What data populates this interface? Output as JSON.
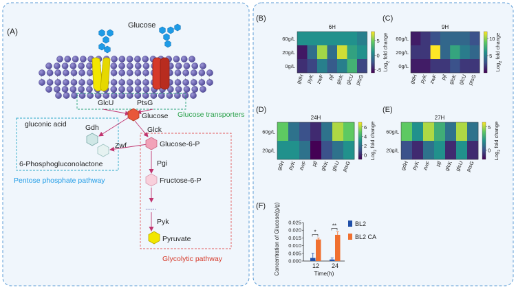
{
  "panel_a": {
    "label": "(A)",
    "glucose_title": "Glucose",
    "transporter_glcu": "GlcU",
    "transporter_ptsg": "PtsG",
    "transporters_caption": "Glucose transporters",
    "glucose_node": "Glucose",
    "gluconic_acid": "gluconic acid",
    "gdh": "Gdh",
    "zwf": "Zwf",
    "phosphogluconolactone": "6-Phosphogluconolactone",
    "pentose_caption": "Pentose phosphate pathway",
    "glck": "Glck",
    "glucose6p": "Glucose-6-P",
    "pgi": "Pgi",
    "fructose6p": "Fructose-6-P",
    "dots": "......",
    "pyk": "Pyk",
    "pyruvate": "Pyruvate",
    "glycolytic_caption": "Glycolytic pathway",
    "colors": {
      "lipid_head": "#6b63b5",
      "glcu_channel": "#f2e600",
      "ptsg_channel": "#d63a2a",
      "hexagon": "#1e9be6",
      "transporter_box": "#2aa17a",
      "pentose_box": "#2aa8c8",
      "glycolytic_box": "#e25b5b",
      "arrow": "#c0336e"
    }
  },
  "chart_data": [
    {
      "type": "heatmap",
      "panel": "(B)",
      "title": "6H",
      "x": [
        "gdH",
        "pyK",
        "zwF",
        "pjl",
        "glcK",
        "glcU",
        "ptsG"
      ],
      "y": [
        "60g/L",
        "20g/L",
        "0g/L"
      ],
      "values": [
        [
          1,
          1,
          1,
          1,
          1,
          1,
          0
        ],
        [
          -5,
          -1,
          6,
          -1,
          7,
          2,
          1
        ],
        [
          -4,
          -3,
          0,
          -2,
          0,
          3,
          -3
        ]
      ],
      "colorbar": {
        "min": -6,
        "max": 8,
        "ticks": [
          "5",
          "0",
          "-5"
        ],
        "label": "Log2 fold change"
      }
    },
    {
      "type": "heatmap",
      "panel": "(C)",
      "title": "9H",
      "x": [
        "gdH",
        "pyK",
        "zwF",
        "pjl",
        "glcK",
        "glcU",
        "ptsG"
      ],
      "y": [
        "60g/L",
        "20g/L",
        "0g/L"
      ],
      "values": [
        [
          1,
          2,
          3,
          4,
          4,
          4,
          3
        ],
        [
          2,
          2,
          12,
          4,
          7,
          5,
          4
        ],
        [
          1,
          1,
          2,
          2,
          3,
          2,
          2
        ]
      ],
      "colorbar": {
        "min": 0,
        "max": 12,
        "ticks": [
          "10",
          "5"
        ],
        "label": "Log2 fold change"
      }
    },
    {
      "type": "heatmap",
      "panel": "(D)",
      "title": "24H",
      "x": [
        "gdH",
        "pyK",
        "zwF",
        "pjl",
        "glcK",
        "glcU",
        "ptsG"
      ],
      "y": [
        "60g/L",
        "20g/L"
      ],
      "values": [
        [
          5,
          2,
          1,
          0,
          2,
          6,
          5
        ],
        [
          3,
          3,
          2,
          -1,
          1,
          2,
          3
        ]
      ],
      "colorbar": {
        "min": -1,
        "max": 7,
        "ticks": [
          "6",
          "4",
          "2",
          "0"
        ],
        "label": "Log2 fold change"
      }
    },
    {
      "type": "heatmap",
      "panel": "(E)",
      "title": "27H",
      "x": [
        "gdH",
        "pyK",
        "zwF",
        "pjl",
        "glcK",
        "glcU",
        "ptsG"
      ],
      "y": [
        "60g/L",
        "20g/L"
      ],
      "values": [
        [
          4,
          2,
          5,
          3,
          1,
          5,
          1
        ],
        [
          0,
          -1,
          1,
          2,
          -1,
          2,
          -1
        ]
      ],
      "colorbar": {
        "min": -2,
        "max": 6,
        "ticks": [
          "5",
          "0"
        ],
        "label": "Log2 fold change"
      }
    },
    {
      "type": "bar",
      "panel": "(F)",
      "categories": [
        "12",
        "24"
      ],
      "series": [
        {
          "name": "BL2",
          "values": [
            0.002,
            0.001
          ],
          "errors": [
            0.003,
            0.001
          ],
          "color": "#1f4fa8"
        },
        {
          "name": "BL2 CA",
          "values": [
            0.014,
            0.017
          ],
          "errors": [
            0.001,
            0.002
          ],
          "color": "#f07030"
        }
      ],
      "significance": [
        "*",
        "**"
      ],
      "xlabel": "Time(h)",
      "ylabel": "Concentration of Glucose(g/g)",
      "yticks": [
        "0.000",
        "0.005",
        "0.010",
        "0.015",
        "0.020",
        "0.025"
      ],
      "ylim": [
        0,
        0.025
      ]
    }
  ]
}
